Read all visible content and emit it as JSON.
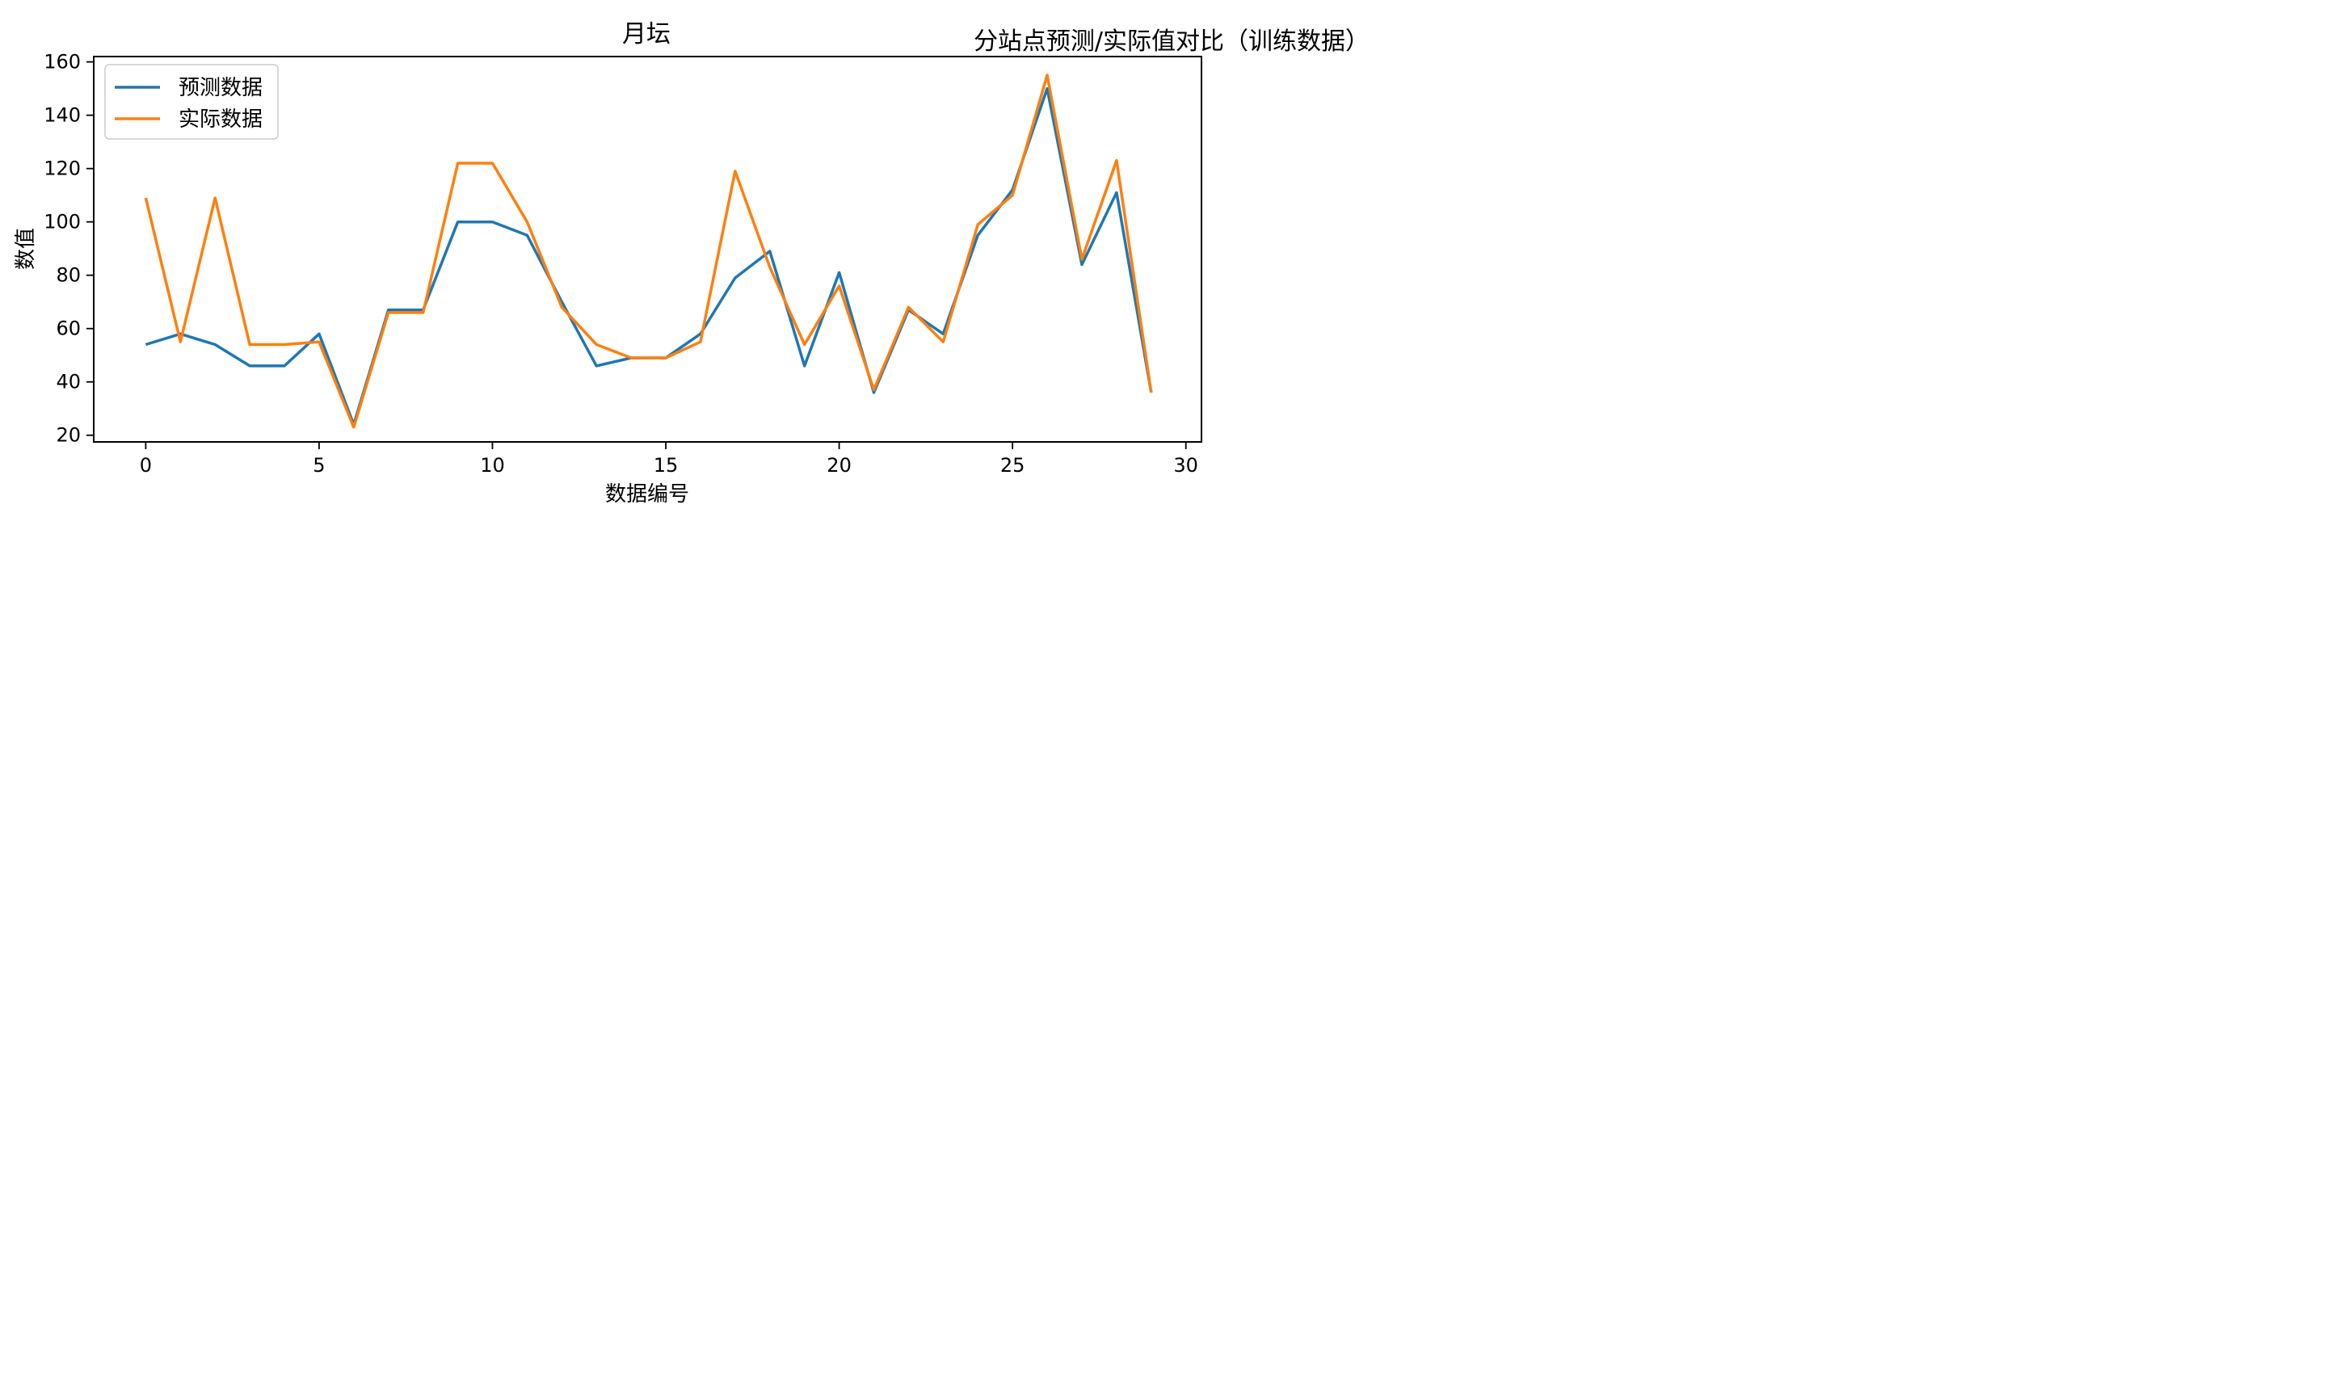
{
  "figure": {
    "suptitle": "分站点预测/实际值对比（训练数据）"
  },
  "chart_data": {
    "type": "line",
    "title": "月坛",
    "xlabel": "数据编号",
    "ylabel": "数值",
    "xlim": [
      -1.5,
      30.45
    ],
    "ylim": [
      17.5,
      162
    ],
    "xticks": [
      0,
      5,
      10,
      15,
      20,
      25,
      30
    ],
    "yticks": [
      20,
      40,
      60,
      80,
      100,
      120,
      140,
      160
    ],
    "grid": false,
    "legend_position": "upper-left",
    "x": [
      0,
      1,
      2,
      3,
      4,
      5,
      6,
      7,
      8,
      9,
      10,
      11,
      12,
      13,
      14,
      15,
      16,
      17,
      18,
      19,
      20,
      21,
      22,
      23,
      24,
      25,
      26,
      27,
      28,
      29
    ],
    "series": [
      {
        "name": "预测数据",
        "color": "#1f77b4",
        "values": [
          54,
          58,
          54,
          46,
          46,
          58,
          24,
          67,
          67,
          100,
          100,
          95,
          70,
          46,
          49,
          49,
          58,
          79,
          89,
          46,
          81,
          36,
          67,
          58,
          95,
          112,
          150,
          84,
          111,
          36
        ]
      },
      {
        "name": "实际数据",
        "color": "#ff7f0e",
        "values": [
          109,
          55,
          109,
          54,
          54,
          55,
          23,
          66,
          66,
          122,
          122,
          100,
          68,
          54,
          49,
          49,
          55,
          119,
          83,
          54,
          76,
          37,
          68,
          55,
          99,
          110,
          155,
          86,
          123,
          36
        ]
      }
    ]
  }
}
